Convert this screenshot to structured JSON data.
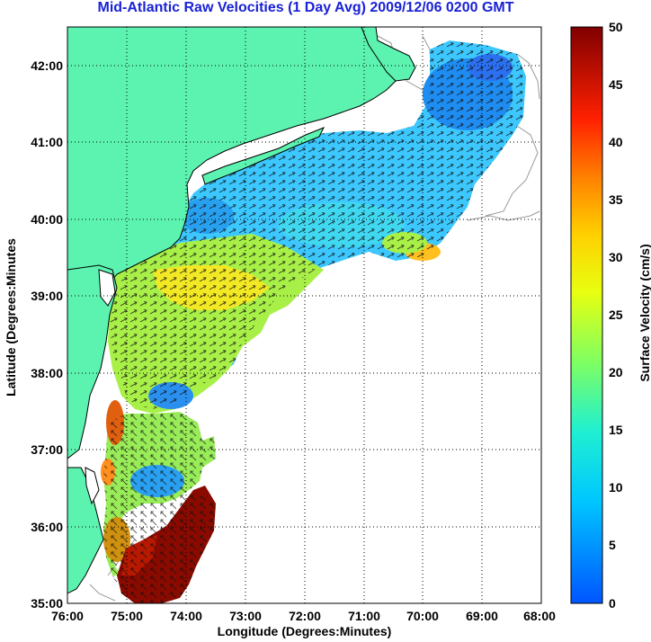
{
  "title": "Mid-Atlantic Raw Velocities (1 Day Avg) 2009/12/06 0200 GMT",
  "axes": {
    "xlabel": "Longitude (Degrees:Minutes)",
    "ylabel": "Latitude (Degrees:Minutes",
    "x_ticks": [
      "76:00",
      "75:00",
      "74:00",
      "73:00",
      "72:00",
      "71:00",
      "70:00",
      "69:00",
      "68:00"
    ],
    "y_ticks": [
      "42:00",
      "41:00",
      "40:00",
      "39:00",
      "38:00",
      "37:00",
      "36:00",
      "35:00"
    ],
    "xlim": [
      -76,
      -68
    ],
    "ylim": [
      35,
      42.5
    ],
    "grid": "dotted"
  },
  "colorbar": {
    "label": "Surface Velocity (cm/s)",
    "ticks": [
      "50",
      "45",
      "40",
      "35",
      "30",
      "25",
      "20",
      "15",
      "10",
      "5",
      "0"
    ],
    "range": [
      0,
      50
    ],
    "colormap": "jet"
  },
  "colors": {
    "land": "#5cf3b0",
    "coastline": "#000000",
    "bathymetry": "#999999",
    "title": "#1a22d6"
  }
}
